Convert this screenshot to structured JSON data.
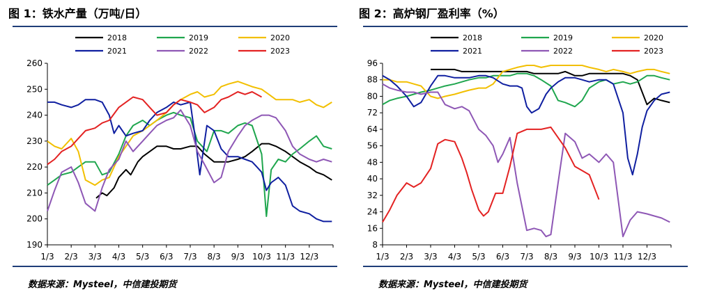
{
  "chart_data": [
    {
      "type": "line",
      "title": "图 1：铁水产量（万吨/日）",
      "source": "数据来源：Mysteel，中信建投期货",
      "xlabel": "",
      "ylabel": "",
      "ylim": [
        190,
        260
      ],
      "yticks": [
        190,
        200,
        210,
        220,
        230,
        240,
        250,
        260
      ],
      "x_ticks": [
        1,
        2,
        3,
        4,
        5,
        6,
        7,
        8,
        9,
        10,
        11,
        12
      ],
      "x_tick_labels": [
        "1/3",
        "2/3",
        "3/3",
        "4/3",
        "5/3",
        "6/3",
        "7/3",
        "8/3",
        "9/3",
        "10/3",
        "11/3",
        "12/3"
      ],
      "xlim": [
        1,
        13
      ],
      "legend_position": "top",
      "series": [
        {
          "name": "2018",
          "color": "#000000",
          "x": [
            3.05,
            3.3,
            3.5,
            3.8,
            4.0,
            4.3,
            4.5,
            4.8,
            5.0,
            5.3,
            5.6,
            6.0,
            6.3,
            6.6,
            7.0,
            7.3,
            7.6,
            8.0,
            8.3,
            8.6,
            9.0,
            9.3,
            9.6,
            10.0,
            10.3,
            10.6,
            11.0,
            11.3,
            11.6,
            12.0,
            12.3,
            12.6,
            12.95
          ],
          "values": [
            208,
            210,
            209,
            212,
            216,
            219,
            217,
            222,
            224,
            226,
            228,
            228,
            227,
            227,
            228,
            228,
            225,
            222,
            222,
            222,
            223,
            224,
            226,
            229,
            229,
            228,
            226,
            224,
            222,
            220,
            218,
            217,
            215
          ]
        },
        {
          "name": "2019",
          "color": "#1fa64e",
          "x": [
            1.0,
            1.3,
            1.6,
            2.0,
            2.3,
            2.6,
            3.0,
            3.3,
            3.6,
            4.0,
            4.3,
            4.6,
            5.0,
            5.3,
            5.6,
            6.0,
            6.3,
            6.6,
            7.0,
            7.3,
            7.5,
            7.7,
            8.0,
            8.3,
            8.6,
            9.0,
            9.3,
            9.6,
            10.0,
            10.2,
            10.4,
            10.7,
            11.0,
            11.3,
            11.6,
            12.0,
            12.3,
            12.6,
            12.95
          ],
          "values": [
            213,
            215,
            217,
            218,
            220,
            222,
            222,
            217,
            218,
            225,
            232,
            236,
            238,
            236,
            238,
            240,
            241,
            240,
            239,
            230,
            228,
            226,
            234,
            234,
            233,
            236,
            237,
            236,
            225,
            201,
            219,
            223,
            222,
            225,
            227,
            230,
            232,
            228,
            227
          ]
        },
        {
          "name": "2020",
          "color": "#f2bf00",
          "x": [
            1.0,
            1.3,
            1.6,
            2.0,
            2.3,
            2.6,
            3.0,
            3.3,
            3.6,
            4.0,
            4.3,
            4.6,
            5.0,
            5.3,
            5.6,
            6.0,
            6.3,
            6.6,
            7.0,
            7.3,
            7.6,
            8.0,
            8.3,
            8.6,
            9.0,
            9.3,
            9.6,
            10.0,
            10.3,
            10.6,
            11.0,
            11.3,
            11.6,
            12.0,
            12.3,
            12.6,
            12.95
          ],
          "values": [
            230,
            228,
            227,
            231,
            226,
            215,
            213,
            215,
            216,
            224,
            228,
            232,
            234,
            236,
            238,
            241,
            244,
            246,
            248,
            249,
            247,
            248,
            251,
            252,
            253,
            252,
            251,
            250,
            248,
            246,
            246,
            246,
            245,
            246,
            244,
            243,
            245
          ]
        },
        {
          "name": "2021",
          "color": "#0f1fa0",
          "x": [
            1.0,
            1.3,
            1.6,
            2.0,
            2.3,
            2.6,
            3.0,
            3.3,
            3.6,
            3.8,
            4.0,
            4.3,
            4.6,
            5.0,
            5.3,
            5.6,
            6.0,
            6.3,
            6.6,
            7.0,
            7.2,
            7.4,
            7.7,
            8.0,
            8.3,
            8.6,
            9.0,
            9.3,
            9.6,
            9.8,
            10.0,
            10.2,
            10.4,
            10.7,
            11.0,
            11.3,
            11.6,
            12.0,
            12.3,
            12.6,
            12.95
          ],
          "values": [
            245,
            245,
            244,
            243,
            244,
            246,
            246,
            245,
            240,
            233,
            236,
            232,
            233,
            234,
            238,
            241,
            243,
            245,
            244,
            245,
            232,
            217,
            236,
            234,
            227,
            224,
            224,
            223,
            222,
            220,
            218,
            211,
            214,
            216,
            213,
            205,
            203,
            202,
            200,
            199,
            199
          ]
        },
        {
          "name": "2022",
          "color": "#8e57b5",
          "x": [
            1.0,
            1.3,
            1.6,
            2.0,
            2.3,
            2.6,
            3.0,
            3.3,
            3.6,
            4.0,
            4.3,
            4.6,
            5.0,
            5.3,
            5.6,
            6.0,
            6.3,
            6.6,
            7.0,
            7.3,
            7.6,
            8.0,
            8.3,
            8.6,
            9.0,
            9.3,
            9.6,
            10.0,
            10.3,
            10.6,
            11.0,
            11.3,
            11.6,
            12.0,
            12.3,
            12.6,
            12.95
          ],
          "values": [
            203,
            211,
            218,
            220,
            214,
            206,
            203,
            212,
            219,
            223,
            230,
            226,
            230,
            233,
            236,
            238,
            239,
            242,
            236,
            226,
            221,
            214,
            216,
            226,
            232,
            236,
            238,
            240,
            240,
            239,
            234,
            228,
            225,
            223,
            222,
            223,
            222
          ]
        },
        {
          "name": "2023",
          "color": "#e32222",
          "x": [
            1.0,
            1.3,
            1.6,
            2.0,
            2.3,
            2.6,
            3.0,
            3.3,
            3.6,
            4.0,
            4.3,
            4.6,
            5.0,
            5.3,
            5.6,
            6.0,
            6.3,
            6.6,
            7.0,
            7.3,
            7.6,
            8.0,
            8.3,
            8.6,
            9.0,
            9.3,
            9.6,
            10.0
          ],
          "values": [
            221,
            223,
            226,
            228,
            231,
            234,
            235,
            237,
            238,
            243,
            245,
            247,
            246,
            243,
            240,
            241,
            244,
            246,
            245,
            244,
            241,
            243,
            246,
            247,
            249,
            248,
            249,
            247
          ]
        }
      ]
    },
    {
      "type": "line",
      "title": "图 2：高炉钢厂盈利率（%）",
      "source": "数据来源：Mysteel，中信建投期货",
      "xlabel": "",
      "ylabel": "",
      "ylim": [
        8,
        96
      ],
      "yticks": [
        8,
        16,
        24,
        32,
        40,
        48,
        56,
        64,
        72,
        80,
        88,
        96
      ],
      "x_ticks": [
        1,
        2,
        3,
        4,
        5,
        6,
        7,
        8,
        9,
        10,
        11,
        12
      ],
      "x_tick_labels": [
        "1/3",
        "2/3",
        "3/3",
        "4/3",
        "5/3",
        "6/3",
        "7/3",
        "8/3",
        "9/3",
        "10/3",
        "11/3",
        "12/3"
      ],
      "xlim": [
        1,
        13
      ],
      "legend_position": "top",
      "series": [
        {
          "name": "2018",
          "color": "#000000",
          "x": [
            3.0,
            3.3,
            3.6,
            4.0,
            4.3,
            4.6,
            5.0,
            5.3,
            5.6,
            6.0,
            6.3,
            6.6,
            7.0,
            7.3,
            7.6,
            8.0,
            8.3,
            8.6,
            9.0,
            9.3,
            9.6,
            10.0,
            10.3,
            10.6,
            11.0,
            11.3,
            11.6,
            12.0,
            12.3,
            12.6,
            12.95
          ],
          "values": [
            93,
            93,
            93,
            93,
            92,
            92,
            92,
            92,
            92,
            92,
            92,
            92,
            92,
            91,
            91,
            91,
            91,
            92,
            90,
            90,
            91,
            91,
            91,
            91,
            91,
            90,
            88,
            76,
            79,
            78,
            77
          ]
        },
        {
          "name": "2019",
          "color": "#1fa64e",
          "x": [
            1.0,
            1.3,
            1.6,
            2.0,
            2.3,
            2.6,
            3.0,
            3.3,
            3.6,
            4.0,
            4.3,
            4.6,
            5.0,
            5.3,
            5.6,
            6.0,
            6.3,
            6.6,
            7.0,
            7.3,
            7.6,
            8.0,
            8.3,
            8.6,
            9.0,
            9.3,
            9.6,
            10.0,
            10.3,
            10.6,
            11.0,
            11.3,
            11.6,
            12.0,
            12.3,
            12.6,
            12.95
          ],
          "values": [
            76,
            78,
            79,
            80,
            81,
            82,
            83,
            84,
            85,
            86,
            87,
            88,
            89,
            89,
            90,
            90,
            90,
            91,
            91,
            90,
            88,
            85,
            78,
            77,
            75,
            78,
            84,
            87,
            88,
            86,
            87,
            86,
            87,
            90,
            90,
            89,
            88
          ]
        },
        {
          "name": "2020",
          "color": "#f2bf00",
          "x": [
            1.0,
            1.3,
            1.6,
            2.0,
            2.3,
            2.6,
            3.0,
            3.3,
            3.6,
            4.0,
            4.3,
            4.6,
            5.0,
            5.3,
            5.6,
            6.0,
            6.3,
            6.6,
            7.0,
            7.3,
            7.6,
            8.0,
            8.3,
            8.6,
            9.0,
            9.3,
            9.6,
            10.0,
            10.3,
            10.6,
            11.0,
            11.3,
            11.6,
            12.0,
            12.3,
            12.6,
            12.95
          ],
          "values": [
            88,
            88,
            87,
            87,
            86,
            85,
            80,
            79,
            80,
            81,
            82,
            83,
            84,
            84,
            86,
            92,
            93,
            94,
            95,
            95,
            94,
            95,
            95,
            95,
            95,
            95,
            94,
            93,
            92,
            93,
            92,
            91,
            92,
            93,
            93,
            92,
            91
          ]
        },
        {
          "name": "2021",
          "color": "#0f1fa0",
          "x": [
            1.0,
            1.3,
            1.6,
            2.0,
            2.3,
            2.6,
            3.0,
            3.3,
            3.6,
            4.0,
            4.3,
            4.6,
            5.0,
            5.3,
            5.6,
            6.0,
            6.3,
            6.6,
            6.8,
            7.0,
            7.2,
            7.5,
            7.8,
            8.0,
            8.3,
            8.6,
            9.0,
            9.3,
            9.6,
            10.0,
            10.3,
            10.6,
            11.0,
            11.2,
            11.4,
            11.6,
            11.8,
            12.0,
            12.3,
            12.6,
            12.95
          ],
          "values": [
            90,
            88,
            85,
            80,
            75,
            77,
            85,
            90,
            90,
            89,
            89,
            89,
            90,
            90,
            89,
            86,
            85,
            85,
            84,
            75,
            72,
            74,
            81,
            84,
            87,
            89,
            89,
            88,
            87,
            88,
            88,
            86,
            72,
            50,
            42,
            52,
            65,
            73,
            78,
            81,
            82
          ]
        },
        {
          "name": "2022",
          "color": "#8e57b5",
          "x": [
            1.0,
            1.3,
            1.6,
            2.0,
            2.3,
            2.6,
            3.0,
            3.3,
            3.6,
            4.0,
            4.3,
            4.6,
            5.0,
            5.3,
            5.6,
            5.8,
            6.0,
            6.3,
            6.6,
            7.0,
            7.3,
            7.6,
            7.8,
            8.0,
            8.3,
            8.6,
            9.0,
            9.3,
            9.6,
            10.0,
            10.3,
            10.6,
            11.0,
            11.3,
            11.6,
            12.0,
            12.3,
            12.6,
            12.95
          ],
          "values": [
            86,
            84,
            83,
            82,
            82,
            81,
            82,
            82,
            76,
            74,
            75,
            73,
            64,
            61,
            56,
            48,
            52,
            60,
            38,
            15,
            16,
            15,
            12,
            13,
            38,
            62,
            58,
            50,
            52,
            48,
            52,
            48,
            12,
            20,
            24,
            23,
            22,
            21,
            19
          ]
        },
        {
          "name": "2023",
          "color": "#e32222",
          "x": [
            1.0,
            1.3,
            1.6,
            2.0,
            2.3,
            2.6,
            3.0,
            3.3,
            3.6,
            4.0,
            4.3,
            4.5,
            4.7,
            5.0,
            5.2,
            5.4,
            5.7,
            6.0,
            6.3,
            6.6,
            7.0,
            7.3,
            7.6,
            8.0,
            8.3,
            8.6,
            9.0,
            9.3,
            9.6,
            10.0
          ],
          "values": [
            19,
            25,
            32,
            38,
            36,
            38,
            45,
            57,
            59,
            58,
            50,
            43,
            35,
            25,
            22,
            24,
            33,
            33,
            46,
            62,
            64,
            64,
            64,
            65,
            60,
            55,
            46,
            44,
            42,
            30
          ]
        }
      ]
    }
  ]
}
